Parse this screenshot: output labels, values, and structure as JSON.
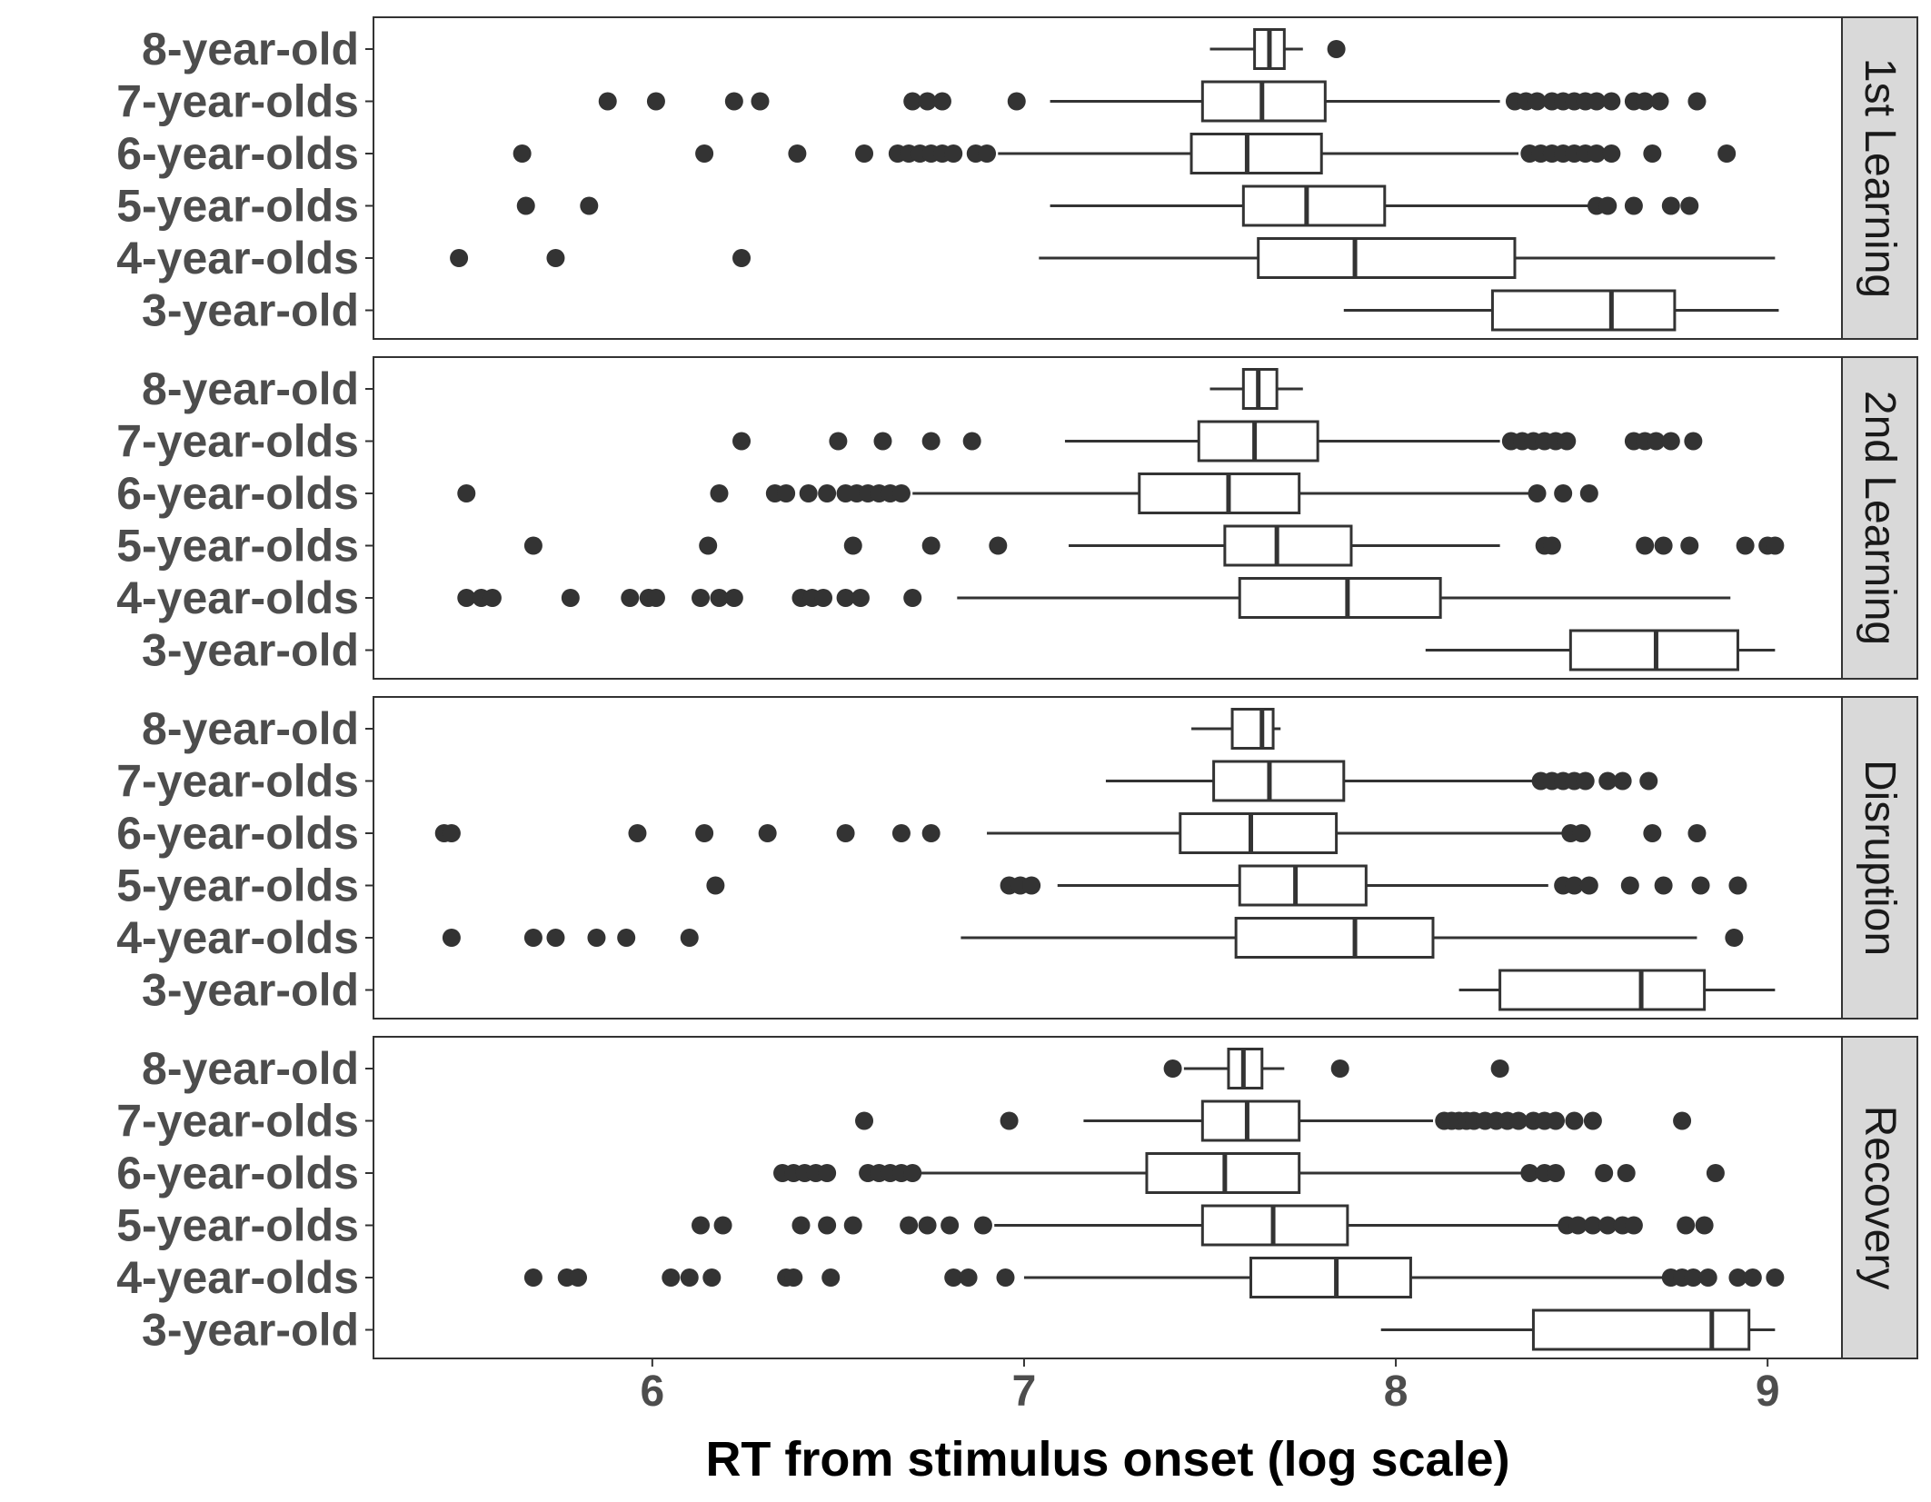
{
  "chart_data": {
    "type": "boxplot",
    "orientation": "horizontal",
    "xlabel": "RT from stimulus onset (log scale)",
    "xlim": [
      5.25,
      9.2
    ],
    "x_ticks": [
      6,
      7,
      8,
      9
    ],
    "x_tick_labels": [
      "6",
      "7",
      "8",
      "9"
    ],
    "categories": [
      "8-year-old",
      "7-year-olds",
      "6-year-olds",
      "5-year-olds",
      "4-year-olds",
      "3-year-old"
    ],
    "grid": false,
    "colors": {
      "box": "#333333",
      "outlier": "#333333",
      "strip_bg": "#d9d9d9",
      "tick_text": "#4d4d4d"
    },
    "panels": [
      {
        "label": "1st Learning",
        "groups": [
          {
            "category": "8-year-old",
            "whisker_low": 7.5,
            "q1": 7.62,
            "median": 7.66,
            "q3": 7.7,
            "whisker_high": 7.75,
            "outliers": [
              7.84
            ]
          },
          {
            "category": "7-year-olds",
            "whisker_low": 7.07,
            "q1": 7.48,
            "median": 7.64,
            "q3": 7.81,
            "whisker_high": 8.28,
            "outliers": [
              5.88,
              6.01,
              6.22,
              6.29,
              6.7,
              6.74,
              6.78,
              6.98,
              8.32,
              8.35,
              8.38,
              8.42,
              8.45,
              8.48,
              8.51,
              8.54,
              8.58,
              8.64,
              8.67,
              8.71,
              8.81
            ]
          },
          {
            "category": "6-year-olds",
            "whisker_low": 6.93,
            "q1": 7.45,
            "median": 7.6,
            "q3": 7.8,
            "whisker_high": 8.33,
            "outliers": [
              5.65,
              6.14,
              6.39,
              6.57,
              6.66,
              6.69,
              6.72,
              6.75,
              6.78,
              6.81,
              6.87,
              6.9,
              8.36,
              8.39,
              8.42,
              8.45,
              8.48,
              8.51,
              8.54,
              8.58,
              8.69,
              8.89
            ]
          },
          {
            "category": "5-year-olds",
            "whisker_low": 7.07,
            "q1": 7.59,
            "median": 7.76,
            "q3": 7.97,
            "whisker_high": 8.52,
            "outliers": [
              5.66,
              5.83,
              8.54,
              8.57,
              8.64,
              8.74,
              8.79
            ]
          },
          {
            "category": "4-year-olds",
            "whisker_low": 7.04,
            "q1": 7.63,
            "median": 7.89,
            "q3": 8.32,
            "whisker_high": 9.02,
            "outliers": [
              5.48,
              5.74,
              6.24
            ]
          },
          {
            "category": "3-year-old",
            "whisker_low": 7.86,
            "q1": 8.26,
            "median": 8.58,
            "q3": 8.75,
            "whisker_high": 9.03,
            "outliers": []
          }
        ]
      },
      {
        "label": "2nd Learning",
        "groups": [
          {
            "category": "8-year-old",
            "whisker_low": 7.5,
            "q1": 7.59,
            "median": 7.63,
            "q3": 7.68,
            "whisker_high": 7.75,
            "outliers": []
          },
          {
            "category": "7-year-olds",
            "whisker_low": 7.11,
            "q1": 7.47,
            "median": 7.62,
            "q3": 7.79,
            "whisker_high": 8.28,
            "outliers": [
              6.24,
              6.5,
              6.62,
              6.75,
              6.86,
              8.31,
              8.34,
              8.37,
              8.4,
              8.43,
              8.46,
              8.64,
              8.67,
              8.7,
              8.74,
              8.8
            ]
          },
          {
            "category": "6-year-olds",
            "whisker_low": 6.7,
            "q1": 7.31,
            "median": 7.55,
            "q3": 7.74,
            "whisker_high": 8.36,
            "outliers": [
              5.5,
              6.18,
              6.33,
              6.36,
              6.42,
              6.47,
              6.52,
              6.55,
              6.58,
              6.61,
              6.64,
              6.67,
              8.38,
              8.45,
              8.52
            ]
          },
          {
            "category": "5-year-olds",
            "whisker_low": 7.12,
            "q1": 7.54,
            "median": 7.68,
            "q3": 7.88,
            "whisker_high": 8.28,
            "outliers": [
              5.68,
              6.15,
              6.54,
              6.75,
              6.93,
              8.4,
              8.42,
              8.67,
              8.72,
              8.79,
              8.94,
              9.0,
              9.02
            ]
          },
          {
            "category": "4-year-olds",
            "whisker_low": 6.82,
            "q1": 7.58,
            "median": 7.87,
            "q3": 8.12,
            "whisker_high": 8.9,
            "outliers": [
              5.5,
              5.54,
              5.57,
              5.78,
              5.94,
              5.99,
              6.01,
              6.13,
              6.18,
              6.22,
              6.4,
              6.43,
              6.46,
              6.52,
              6.56,
              6.7
            ]
          },
          {
            "category": "3-year-old",
            "whisker_low": 8.08,
            "q1": 8.47,
            "median": 8.7,
            "q3": 8.92,
            "whisker_high": 9.02,
            "outliers": []
          }
        ]
      },
      {
        "label": "Disruption",
        "groups": [
          {
            "category": "8-year-old",
            "whisker_low": 7.45,
            "q1": 7.56,
            "median": 7.64,
            "q3": 7.67,
            "whisker_high": 7.69,
            "outliers": []
          },
          {
            "category": "7-year-olds",
            "whisker_low": 7.22,
            "q1": 7.51,
            "median": 7.66,
            "q3": 7.86,
            "whisker_high": 8.37,
            "outliers": [
              8.39,
              8.42,
              8.45,
              8.48,
              8.51,
              8.57,
              8.61,
              8.68
            ]
          },
          {
            "category": "6-year-olds",
            "whisker_low": 6.9,
            "q1": 7.42,
            "median": 7.61,
            "q3": 7.84,
            "whisker_high": 8.45,
            "outliers": [
              5.44,
              5.46,
              5.96,
              6.14,
              6.31,
              6.52,
              6.67,
              6.75,
              8.47,
              8.5,
              8.69,
              8.81
            ]
          },
          {
            "category": "5-year-olds",
            "whisker_low": 7.09,
            "q1": 7.58,
            "median": 7.73,
            "q3": 7.92,
            "whisker_high": 8.41,
            "outliers": [
              6.17,
              6.96,
              6.99,
              7.02,
              8.45,
              8.48,
              8.52,
              8.63,
              8.72,
              8.82,
              8.92
            ]
          },
          {
            "category": "4-year-olds",
            "whisker_low": 6.83,
            "q1": 7.57,
            "median": 7.89,
            "q3": 8.1,
            "whisker_high": 8.81,
            "outliers": [
              5.46,
              5.68,
              5.74,
              5.85,
              5.93,
              6.1,
              8.91
            ]
          },
          {
            "category": "3-year-old",
            "whisker_low": 8.17,
            "q1": 8.28,
            "median": 8.66,
            "q3": 8.83,
            "whisker_high": 9.02,
            "outliers": []
          }
        ]
      },
      {
        "label": "Recovery",
        "groups": [
          {
            "category": "8-year-old",
            "whisker_low": 7.43,
            "q1": 7.55,
            "median": 7.59,
            "q3": 7.64,
            "whisker_high": 7.7,
            "outliers": [
              7.4,
              7.85,
              8.28
            ]
          },
          {
            "category": "7-year-olds",
            "whisker_low": 7.16,
            "q1": 7.48,
            "median": 7.6,
            "q3": 7.74,
            "whisker_high": 8.1,
            "outliers": [
              6.57,
              6.96,
              8.13,
              8.15,
              8.17,
              8.19,
              8.21,
              8.24,
              8.27,
              8.3,
              8.33,
              8.37,
              8.4,
              8.43,
              8.48,
              8.53,
              8.77
            ]
          },
          {
            "category": "6-year-olds",
            "whisker_low": 6.72,
            "q1": 7.33,
            "median": 7.54,
            "q3": 7.74,
            "whisker_high": 8.34,
            "outliers": [
              6.35,
              6.38,
              6.41,
              6.44,
              6.47,
              6.58,
              6.61,
              6.64,
              6.67,
              6.7,
              8.36,
              8.4,
              8.43,
              8.56,
              8.62,
              8.86
            ]
          },
          {
            "category": "5-year-olds",
            "whisker_low": 6.92,
            "q1": 7.48,
            "median": 7.67,
            "q3": 7.87,
            "whisker_high": 8.44,
            "outliers": [
              6.13,
              6.19,
              6.4,
              6.47,
              6.54,
              6.69,
              6.74,
              6.8,
              6.89,
              8.46,
              8.49,
              8.53,
              8.57,
              8.61,
              8.64,
              8.78,
              8.83
            ]
          },
          {
            "category": "4-year-olds",
            "whisker_low": 7.0,
            "q1": 7.61,
            "median": 7.84,
            "q3": 8.04,
            "whisker_high": 8.72,
            "outliers": [
              5.68,
              5.77,
              5.8,
              6.05,
              6.1,
              6.16,
              6.36,
              6.38,
              6.48,
              6.81,
              6.85,
              6.95,
              8.74,
              8.77,
              8.8,
              8.84,
              8.92,
              8.96,
              9.02
            ]
          },
          {
            "category": "3-year-old",
            "whisker_low": 7.96,
            "q1": 8.37,
            "median": 8.85,
            "q3": 8.95,
            "whisker_high": 9.02,
            "outliers": []
          }
        ]
      }
    ]
  }
}
